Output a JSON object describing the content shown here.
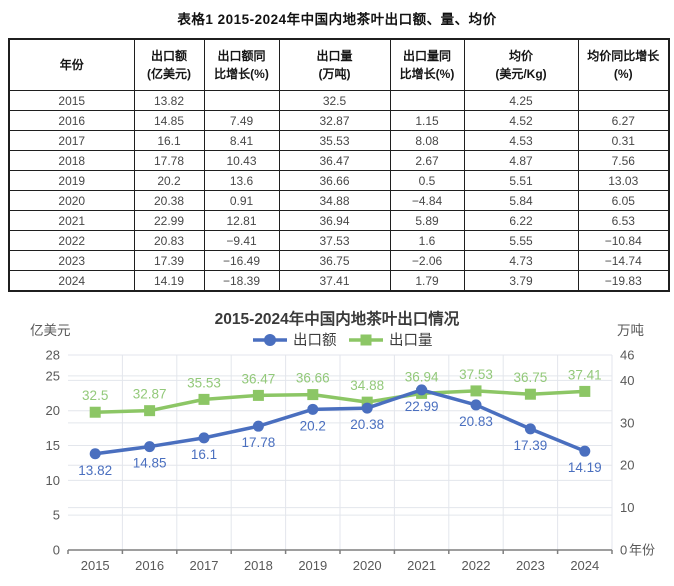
{
  "page": {
    "title": "表格1 2015-2024年中国内地茶叶出口额、量、均价"
  },
  "table": {
    "headers": [
      [
        "年份"
      ],
      [
        "出口额",
        "(亿美元)"
      ],
      [
        "出口额同",
        "比增长(%)"
      ],
      [
        "出口量",
        "(万吨)"
      ],
      [
        "出口量同",
        "比增长(%)"
      ],
      [
        "均价",
        "(美元/Kg)"
      ],
      [
        "均价同比增长",
        "(%)"
      ]
    ],
    "rows": [
      [
        "2015",
        "13.82",
        "",
        "32.5",
        "",
        "4.25",
        ""
      ],
      [
        "2016",
        "14.85",
        "7.49",
        "32.87",
        "1.15",
        "4.52",
        "6.27"
      ],
      [
        "2017",
        "16.1",
        "8.41",
        "35.53",
        "8.08",
        "4.53",
        "0.31"
      ],
      [
        "2018",
        "17.78",
        "10.43",
        "36.47",
        "2.67",
        "4.87",
        "7.56"
      ],
      [
        "2019",
        "20.2",
        "13.6",
        "36.66",
        "0.5",
        "5.51",
        "13.03"
      ],
      [
        "2020",
        "20.38",
        "0.91",
        "34.88",
        "−4.84",
        "5.84",
        "6.05"
      ],
      [
        "2021",
        "22.99",
        "12.81",
        "36.94",
        "5.89",
        "6.22",
        "6.53"
      ],
      [
        "2022",
        "20.83",
        "−9.41",
        "37.53",
        "1.6",
        "5.55",
        "−10.84"
      ],
      [
        "2023",
        "17.39",
        "−16.49",
        "36.75",
        "−2.06",
        "4.73",
        "−14.74"
      ],
      [
        "2024",
        "14.19",
        "−18.39",
        "37.41",
        "1.79",
        "3.79",
        "−19.83"
      ]
    ]
  },
  "chart_data": {
    "type": "line",
    "title": "2015-2024年中国内地茶叶出口情况",
    "title_color": "#3a3a3a",
    "categories": [
      "2015",
      "2016",
      "2017",
      "2018",
      "2019",
      "2020",
      "2021",
      "2022",
      "2023",
      "2024"
    ],
    "series": [
      {
        "name": "出口额",
        "axis": "left",
        "marker": "circle",
        "color": "#4a6fbf",
        "label_color": "#4a6fbf",
        "values": [
          13.82,
          14.85,
          16.1,
          17.78,
          20.2,
          20.38,
          22.99,
          20.83,
          17.39,
          14.19
        ]
      },
      {
        "name": "出口量",
        "axis": "right",
        "marker": "square",
        "color": "#8cc665",
        "label_color": "#93c97a",
        "values": [
          32.5,
          32.87,
          35.53,
          36.47,
          36.66,
          34.88,
          36.94,
          37.53,
          36.75,
          37.41
        ]
      }
    ],
    "left_axis": {
      "label": "亿美元",
      "ticks": [
        0,
        5,
        10,
        15,
        20,
        25,
        28
      ],
      "min": 0,
      "max": 28
    },
    "right_axis": {
      "label": "万吨",
      "ticks": [
        0,
        10,
        20,
        30,
        40,
        46
      ],
      "min": 0,
      "max": 46
    },
    "x_axis_label": "年份",
    "legend_position": "top",
    "grid": true,
    "grid_color": "#e3e6ec",
    "axis_line_color": "#7f7f7f",
    "tick_label_color": "#595959"
  }
}
